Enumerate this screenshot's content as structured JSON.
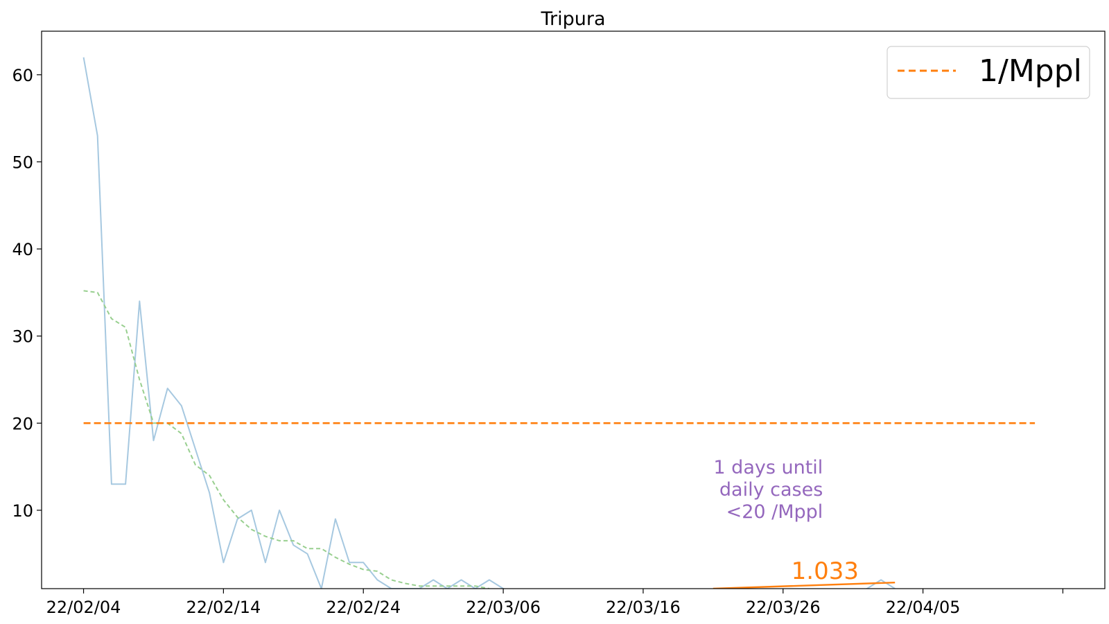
{
  "chart_data": {
    "type": "line",
    "title": "Tripura",
    "xlabel": "",
    "ylabel": "",
    "x_start": "2022-02-04",
    "xticks": [
      "22/02/04",
      "22/02/14",
      "22/02/24",
      "22/03/06",
      "22/03/16",
      "22/03/26",
      "22/04/05",
      ""
    ],
    "xlim": [
      "2022-02-01",
      "2022-04-18"
    ],
    "yticks": [
      10,
      20,
      30,
      40,
      50,
      60
    ],
    "ylim": [
      1,
      65
    ],
    "grid": false,
    "legend": {
      "placement": "upper right",
      "entries": [
        {
          "label": "1/Mppl",
          "color": "#ff7f0e",
          "style": "dashed"
        }
      ]
    },
    "series": [
      {
        "color": "#a6c8e0",
        "style": "solid",
        "points": [
          [
            "2022-02-04",
            62
          ],
          [
            "2022-02-05",
            53
          ],
          [
            "2022-02-06",
            13
          ],
          [
            "2022-02-07",
            13
          ],
          [
            "2022-02-08",
            34
          ],
          [
            "2022-02-09",
            18
          ],
          [
            "2022-02-10",
            24
          ],
          [
            "2022-02-11",
            22
          ],
          [
            "2022-02-12",
            17
          ],
          [
            "2022-02-13",
            12
          ],
          [
            "2022-02-14",
            4
          ],
          [
            "2022-02-15",
            9
          ],
          [
            "2022-02-16",
            10
          ],
          [
            "2022-02-17",
            4
          ],
          [
            "2022-02-18",
            10
          ],
          [
            "2022-02-19",
            6
          ],
          [
            "2022-02-20",
            5
          ],
          [
            "2022-02-21",
            1
          ],
          [
            "2022-02-22",
            9
          ],
          [
            "2022-02-23",
            4
          ],
          [
            "2022-02-24",
            4
          ],
          [
            "2022-02-25",
            2
          ],
          [
            "2022-02-26",
            1
          ],
          [
            "2022-02-27",
            1
          ],
          [
            "2022-02-28",
            1
          ],
          [
            "2022-03-01",
            2
          ],
          [
            "2022-03-02",
            1
          ],
          [
            "2022-03-03",
            2
          ],
          [
            "2022-03-04",
            1
          ],
          [
            "2022-03-05",
            2
          ],
          [
            "2022-03-06",
            1
          ],
          [
            "2022-03-07",
            0.5
          ],
          [
            "2022-03-24",
            0.5
          ],
          [
            "2022-03-31",
            0.5
          ],
          [
            "2022-04-01",
            1
          ],
          [
            "2022-04-02",
            2
          ],
          [
            "2022-04-03",
            1
          ]
        ]
      },
      {
        "color": "#98cf8f",
        "style": "dashed",
        "points": [
          [
            "2022-02-04",
            35.2
          ],
          [
            "2022-02-05",
            35
          ],
          [
            "2022-02-06",
            32
          ],
          [
            "2022-02-07",
            31
          ],
          [
            "2022-02-08",
            25
          ],
          [
            "2022-02-09",
            20
          ],
          [
            "2022-02-10",
            20
          ],
          [
            "2022-02-11",
            18.8
          ],
          [
            "2022-02-12",
            15.2
          ],
          [
            "2022-02-13",
            14
          ],
          [
            "2022-02-14",
            11.2
          ],
          [
            "2022-02-15",
            9.2
          ],
          [
            "2022-02-16",
            7.8
          ],
          [
            "2022-02-17",
            7
          ],
          [
            "2022-02-18",
            6.5
          ],
          [
            "2022-02-19",
            6.5
          ],
          [
            "2022-02-20",
            5.6
          ],
          [
            "2022-02-21",
            5.6
          ],
          [
            "2022-02-22",
            4.6
          ],
          [
            "2022-02-23",
            3.8
          ],
          [
            "2022-02-24",
            3.2
          ],
          [
            "2022-02-25",
            3
          ],
          [
            "2022-02-26",
            2
          ],
          [
            "2022-02-27",
            1.6
          ],
          [
            "2022-02-28",
            1.3
          ],
          [
            "2022-03-01",
            1.3
          ],
          [
            "2022-03-02",
            1.3
          ],
          [
            "2022-03-03",
            1.3
          ],
          [
            "2022-03-04",
            1.3
          ],
          [
            "2022-03-05",
            1
          ]
        ]
      },
      {
        "name": "1/Mppl",
        "color": "#ff7f0e",
        "style": "dashed",
        "points": [
          [
            "2022-02-04",
            20
          ],
          [
            "2022-04-13",
            20
          ]
        ]
      },
      {
        "color": "#ff7f0e",
        "style": "solid",
        "points": [
          [
            "2022-03-21",
            1
          ],
          [
            "2022-04-03",
            1.7
          ]
        ]
      }
    ],
    "annotations": [
      {
        "lines": [
          "1 days until",
          "daily cases",
          "<20 /Mppl"
        ],
        "color": "#9467bd"
      },
      {
        "text": "1.033",
        "color": "#ff7f0e"
      }
    ]
  }
}
